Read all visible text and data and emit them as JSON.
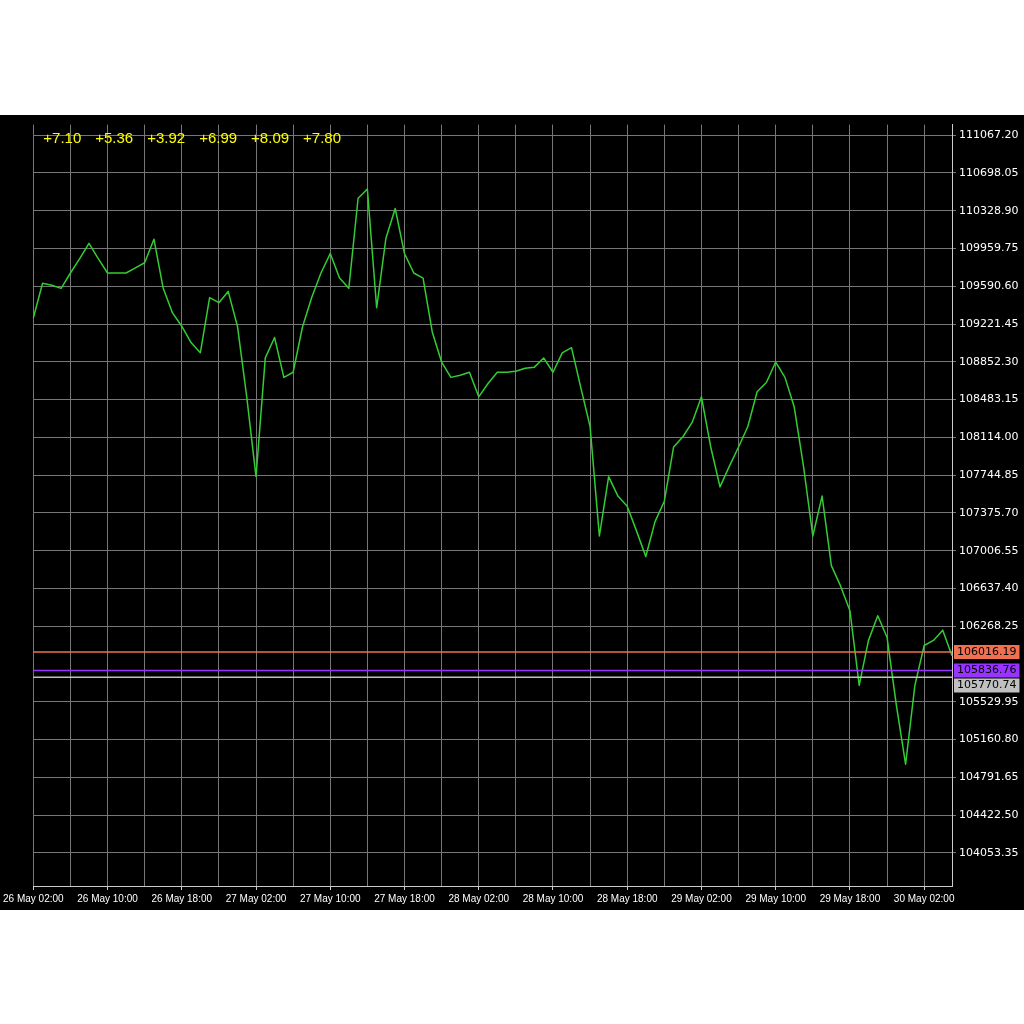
{
  "chart_data": {
    "type": "line",
    "color": "#33cc33",
    "marker": "none",
    "line_style": "solid",
    "grid": true,
    "legend": false,
    "categories": [
      "26 May 02:00",
      null,
      null,
      null,
      null,
      null,
      null,
      null,
      "26 May 10:00",
      null,
      null,
      null,
      null,
      null,
      null,
      null,
      "26 May 18:00",
      null,
      null,
      null,
      null,
      null,
      null,
      null,
      "27 May 02:00",
      null,
      null,
      null,
      null,
      null,
      null,
      null,
      "27 May 10:00",
      null,
      null,
      null,
      null,
      null,
      null,
      null,
      "27 May 18:00",
      null,
      null,
      null,
      null,
      null,
      null,
      null,
      "28 May 02:00",
      null,
      null,
      null,
      null,
      null,
      null,
      null,
      "28 May 10:00",
      null,
      null,
      null,
      null,
      null,
      null,
      null,
      "28 May 18:00",
      null,
      null,
      null,
      null,
      null,
      null,
      null,
      "29 May 02:00",
      null,
      null,
      null,
      null,
      null,
      null,
      null,
      "29 May 10:00",
      null,
      null,
      null,
      null,
      null,
      null,
      null,
      "29 May 18:00",
      null,
      null,
      null,
      null,
      null,
      null,
      null,
      "30 May 02:00",
      null,
      null,
      null
    ],
    "values": [
      109280,
      109620,
      109600,
      109570,
      109720,
      109860,
      110010,
      109860,
      109720,
      109720,
      109720,
      109770,
      109820,
      110050,
      109570,
      109330,
      109200,
      109040,
      108940,
      109480,
      109430,
      109540,
      109200,
      108510,
      107730,
      108890,
      109090,
      108700,
      108750,
      109190,
      109480,
      109720,
      109910,
      109670,
      109570,
      110450,
      110540,
      109380,
      110060,
      110350,
      109910,
      109720,
      109670,
      109140,
      108850,
      108700,
      108720,
      108750,
      108510,
      108640,
      108750,
      108750,
      108760,
      108790,
      108800,
      108890,
      108750,
      108940,
      108990,
      108600,
      108220,
      107150,
      107730,
      107540,
      107440,
      107200,
      106950,
      107290,
      107490,
      108020,
      108120,
      108260,
      108510,
      108020,
      107630,
      107830,
      108020,
      108220,
      108560,
      108650,
      108850,
      108700,
      108410,
      107830,
      107150,
      107540,
      106860,
      106660,
      106420,
      105690,
      106130,
      106370,
      106160,
      105500,
      104920,
      105690,
      106080,
      106130,
      106230,
      105980
    ],
    "ylim": [
      103730,
      111170
    ],
    "yticks": [
      {
        "value": 111067.2,
        "label": "111067.20"
      },
      {
        "value": 110698.05,
        "label": "110698.05"
      },
      {
        "value": 110328.9,
        "label": "110328.90"
      },
      {
        "value": 109959.75,
        "label": "109959.75"
      },
      {
        "value": 109590.6,
        "label": "109590.60"
      },
      {
        "value": 109221.45,
        "label": "109221.45"
      },
      {
        "value": 108852.3,
        "label": "108852.30"
      },
      {
        "value": 108483.15,
        "label": "108483.15"
      },
      {
        "value": 108114,
        "label": "108114.00"
      },
      {
        "value": 107744.85,
        "label": "107744.85"
      },
      {
        "value": 107375.7,
        "label": "107375.70"
      },
      {
        "value": 107006.55,
        "label": "107006.55"
      },
      {
        "value": 106637.4,
        "label": "106637.40"
      },
      {
        "value": 106268.25,
        "label": "106268.25"
      },
      {
        "value": 105529.95,
        "label": "105529.95"
      },
      {
        "value": 105160.8,
        "label": "105160.80"
      },
      {
        "value": 104791.65,
        "label": "104791.65"
      },
      {
        "value": 104422.5,
        "label": "104422.50"
      },
      {
        "value": 104053.35,
        "label": "104053.35"
      }
    ],
    "ref_lines": [
      {
        "axis": "y",
        "value": 106016.19,
        "label": "106016.19",
        "color": "#f07050"
      },
      {
        "axis": "y",
        "value": 105836.76,
        "label": "105836.76",
        "color": "#9933ff"
      },
      {
        "axis": "y",
        "value": 105770.74,
        "label": "105770.74",
        "color": "#c0c0c0"
      }
    ],
    "annotations": [
      "+7.10",
      "+5.36",
      "+3.92",
      "+6.99",
      "+8.09",
      "+7.80"
    ]
  }
}
